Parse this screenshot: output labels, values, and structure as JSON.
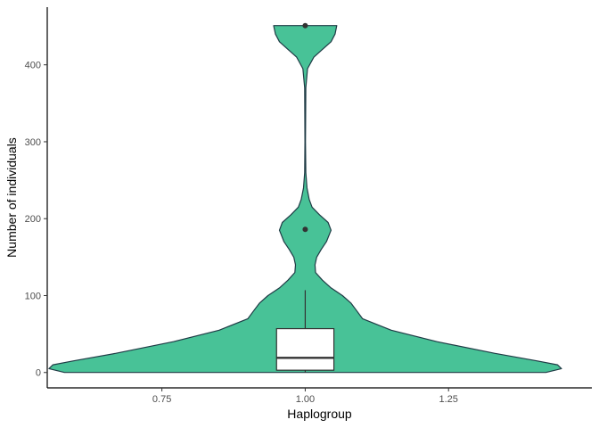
{
  "chart_data": {
    "type": "violin",
    "xlabel": "Haplogroup",
    "ylabel": "Number of individuals",
    "x_ticks": [
      0.75,
      1.0,
      1.25
    ],
    "x_tick_labels": [
      "0.75",
      "1.00",
      "1.25"
    ],
    "y_ticks": [
      0,
      100,
      200,
      300,
      400
    ],
    "y_tick_labels": [
      "0",
      "100",
      "200",
      "300",
      "400"
    ],
    "xlim": [
      0.55,
      1.5
    ],
    "ylim": [
      -20,
      475
    ],
    "grid": false,
    "violin": {
      "x": 1.0,
      "fill": "#48C297",
      "stroke": "#1F3B45",
      "profile": [
        {
          "y": 0,
          "x_left": 0.58,
          "x_right": 1.42
        },
        {
          "y": 5,
          "x_left": 0.553,
          "x_right": 1.447
        },
        {
          "y": 10,
          "x_left": 0.56,
          "x_right": 1.44
        },
        {
          "y": 15,
          "x_left": 0.595,
          "x_right": 1.405
        },
        {
          "y": 25,
          "x_left": 0.67,
          "x_right": 1.33
        },
        {
          "y": 40,
          "x_left": 0.77,
          "x_right": 1.23
        },
        {
          "y": 55,
          "x_left": 0.85,
          "x_right": 1.15
        },
        {
          "y": 70,
          "x_left": 0.9,
          "x_right": 1.1
        },
        {
          "y": 80,
          "x_left": 0.91,
          "x_right": 1.09
        },
        {
          "y": 90,
          "x_left": 0.92,
          "x_right": 1.08
        },
        {
          "y": 100,
          "x_left": 0.935,
          "x_right": 1.065
        },
        {
          "y": 110,
          "x_left": 0.955,
          "x_right": 1.045
        },
        {
          "y": 120,
          "x_left": 0.97,
          "x_right": 1.03
        },
        {
          "y": 130,
          "x_left": 0.982,
          "x_right": 1.018
        },
        {
          "y": 140,
          "x_left": 0.983,
          "x_right": 1.017
        },
        {
          "y": 150,
          "x_left": 0.98,
          "x_right": 1.02
        },
        {
          "y": 160,
          "x_left": 0.972,
          "x_right": 1.028
        },
        {
          "y": 170,
          "x_left": 0.963,
          "x_right": 1.037
        },
        {
          "y": 185,
          "x_left": 0.955,
          "x_right": 1.045
        },
        {
          "y": 195,
          "x_left": 0.96,
          "x_right": 1.04
        },
        {
          "y": 205,
          "x_left": 0.975,
          "x_right": 1.025
        },
        {
          "y": 215,
          "x_left": 0.988,
          "x_right": 1.012
        },
        {
          "y": 225,
          "x_left": 0.993,
          "x_right": 1.007
        },
        {
          "y": 240,
          "x_left": 0.997,
          "x_right": 1.003
        },
        {
          "y": 260,
          "x_left": 0.999,
          "x_right": 1.001
        },
        {
          "y": 300,
          "x_left": 0.9995,
          "x_right": 1.0005
        },
        {
          "y": 370,
          "x_left": 0.999,
          "x_right": 1.001
        },
        {
          "y": 395,
          "x_left": 0.996,
          "x_right": 1.004
        },
        {
          "y": 410,
          "x_left": 0.985,
          "x_right": 1.015
        },
        {
          "y": 420,
          "x_left": 0.97,
          "x_right": 1.03
        },
        {
          "y": 430,
          "x_left": 0.955,
          "x_right": 1.045
        },
        {
          "y": 440,
          "x_left": 0.948,
          "x_right": 1.052
        },
        {
          "y": 451,
          "x_left": 0.945,
          "x_right": 1.055
        }
      ]
    },
    "boxplot": {
      "x": 1.0,
      "half_width": 0.05,
      "q1": 3,
      "median": 19,
      "q3": 57,
      "whisker_low": 0,
      "whisker_high": 107,
      "outliers": [
        186,
        451
      ],
      "fill": "#ffffff",
      "stroke": "#333333"
    }
  }
}
